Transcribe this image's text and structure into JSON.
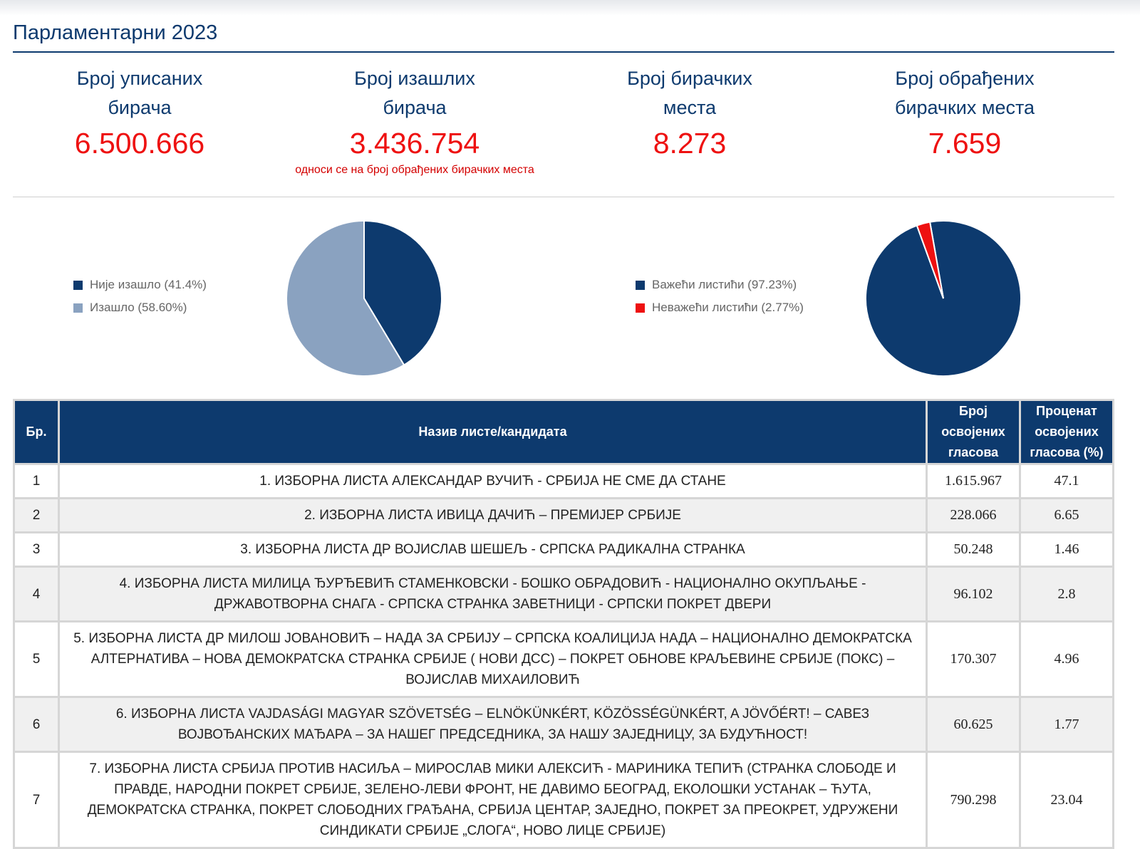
{
  "page": {
    "title": "Парламентарни 2023"
  },
  "stats": [
    {
      "label_line1": "Број уписаних",
      "label_line2": "бирача",
      "value": "6.500.666",
      "note": ""
    },
    {
      "label_line1": "Број изашлих",
      "label_line2": "бирача",
      "value": "3.436.754",
      "note": "односи се на број обрађених бирачких места"
    },
    {
      "label_line1": "Број бирачких",
      "label_line2": "места",
      "value": "8.273",
      "note": ""
    },
    {
      "label_line1": "Број обрађених",
      "label_line2": "бирачких места",
      "value": "7.659",
      "note": ""
    }
  ],
  "chart_data": [
    {
      "type": "pie",
      "title": "",
      "legend_position": "left",
      "slices": [
        {
          "name": "Није изашло (41.4%)",
          "value": 41.4,
          "color": "#0d3a6e"
        },
        {
          "name": "Изашло (58.60%)",
          "value": 58.6,
          "color": "#8aa2c0"
        }
      ]
    },
    {
      "type": "pie",
      "title": "",
      "legend_position": "left",
      "slices": [
        {
          "name": "Важећи листићи (97.23%)",
          "value": 97.23,
          "color": "#0d3a6e"
        },
        {
          "name": "Неважећи листићи (2.77%)",
          "value": 2.77,
          "color": "#ee1111"
        }
      ]
    }
  ],
  "table": {
    "headers": {
      "no": "Бр.",
      "name": "Назив листе/кандидата",
      "votes": "Број освојених гласова",
      "percent": "Проценат освојених гласова (%)"
    },
    "rows": [
      {
        "no": "1",
        "name": "1. ИЗБОРНА ЛИСТА АЛЕКСАНДАР ВУЧИЋ - СРБИЈА НЕ СМЕ ДА СТАНЕ",
        "votes": "1.615.967",
        "percent": "47.1"
      },
      {
        "no": "2",
        "name": "2. ИЗБОРНА ЛИСТА ИВИЦА ДАЧИЋ – ПРЕМИЈЕР СРБИЈЕ",
        "votes": "228.066",
        "percent": "6.65"
      },
      {
        "no": "3",
        "name": "3. ИЗБОРНА ЛИСТА ДР ВОЈИСЛАВ ШЕШЕЉ - СРПСКА РАДИКАЛНА СТРАНКА",
        "votes": "50.248",
        "percent": "1.46"
      },
      {
        "no": "4",
        "name": "4. ИЗБОРНА ЛИСТА МИЛИЦА ЂУРЂЕВИЋ СТАМЕНКОВСКИ - БОШКО ОБРАДОВИЋ - НАЦИОНАЛНО ОКУПЉАЊЕ - ДРЖАВОТВОРНА СНАГА - СРПСКА СТРАНКА ЗАВЕТНИЦИ - СРПСКИ ПОКРЕТ ДВЕРИ",
        "votes": "96.102",
        "percent": "2.8"
      },
      {
        "no": "5",
        "name": "5. ИЗБОРНА ЛИСТА ДР МИЛОШ ЈОВАНОВИЋ – НАДА ЗА СРБИЈУ – СРПСКА КОАЛИЦИЈА НАДА – НАЦИОНАЛНО ДЕМОКРАТСКА АЛТЕРНАТИВА – НОВА ДЕМОКРАТСКА СТРАНКА СРБИЈЕ ( НОВИ ДСС) – ПОКРЕТ ОБНОВЕ КРАЉЕВИНЕ СРБИЈЕ (ПОКС) – ВОЈИСЛАВ МИХАИЛОВИЋ",
        "votes": "170.307",
        "percent": "4.96"
      },
      {
        "no": "6",
        "name": "6. ИЗБОРНА ЛИСТА VAJDASÁGI MAGYAR SZÖVETSÉG – ELNÖKÜNKÉRT, KÖZÖSSÉGÜNKÉRT, A JÖVŐÉRT! – САВЕЗ ВОЈВОЂАНСКИХ МАЂАРА – ЗА НАШЕГ ПРЕДСЕДНИКА, ЗА НАШУ ЗАЈЕДНИЦУ, ЗА БУДУЋНОСТ!",
        "votes": "60.625",
        "percent": "1.77"
      },
      {
        "no": "7",
        "name": "7. ИЗБОРНА ЛИСТА СРБИЈА ПРОТИВ НАСИЉА – МИРОСЛАВ МИКИ АЛЕКСИЋ - МАРИНИКА ТЕПИЋ (СТРАНКА СЛОБОДЕ И ПРАВДЕ, НАРОДНИ ПОКРЕТ СРБИЈЕ, ЗЕЛЕНО-ЛЕВИ ФРОНТ, НЕ ДАВИМО БЕОГРАД, ЕКОЛОШКИ УСТАНАК – ЋУТА, ДЕМОКРАТСКА СТРАНКА, ПОКРЕТ СЛОБОДНИХ ГРАЂАНА, СРБИЈА ЦЕНТАР, ЗАЈЕДНО, ПОКРЕТ ЗА ПРЕОКРЕТ, УДРУЖЕНИ СИНДИКАТИ СРБИЈЕ „СЛОГА“, НОВО ЛИЦЕ СРБИЈЕ)",
        "votes": "790.298",
        "percent": "23.04"
      }
    ]
  }
}
